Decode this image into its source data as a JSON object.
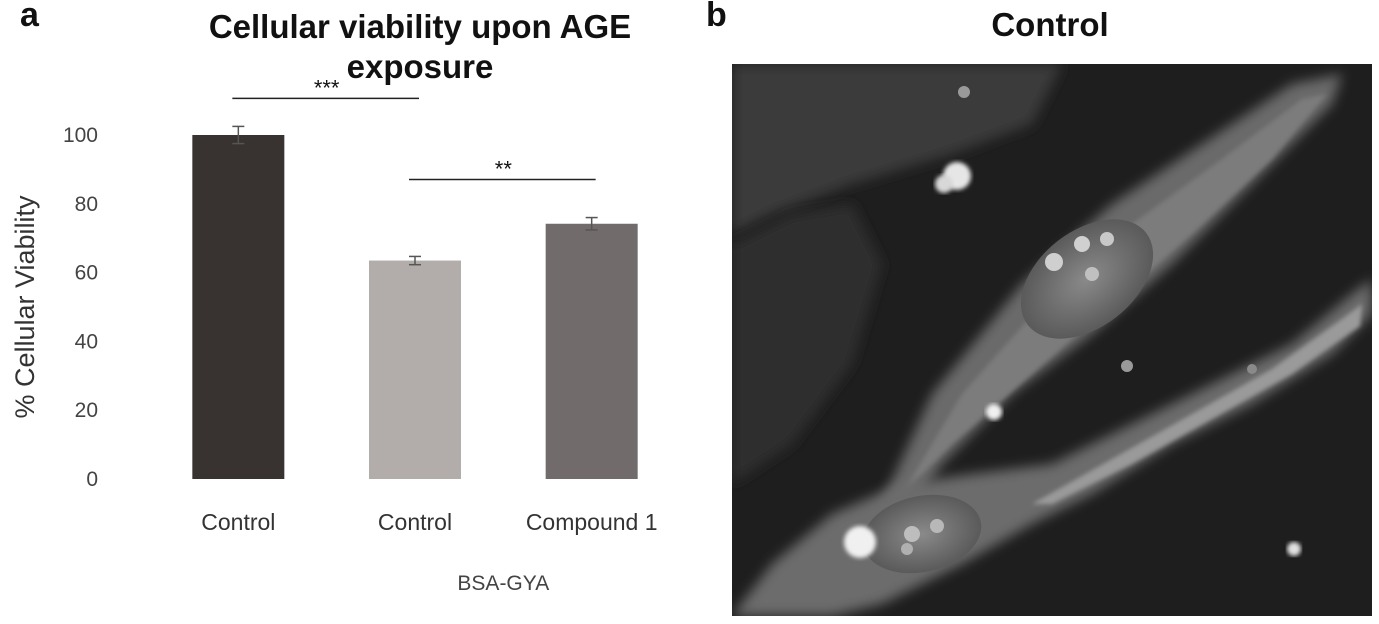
{
  "panels": {
    "a": "a",
    "b": "b"
  },
  "chart_data": {
    "type": "bar",
    "title": "Cellular viability upon AGE exposure",
    "title_lines": [
      "Cellular viability upon AGE",
      "exposure"
    ],
    "ylabel": "% Cellular Viability",
    "xlabel": "",
    "ylim": [
      0,
      100
    ],
    "yticks": [
      0,
      20,
      40,
      60,
      80,
      100
    ],
    "categories": [
      "Control",
      "Control",
      "Compound 1"
    ],
    "values": [
      100,
      63.5,
      74.2
    ],
    "errors": [
      2.5,
      1.2,
      1.8
    ],
    "colors": [
      "#383331",
      "#b2adab",
      "#726b6b"
    ],
    "group_label": "BSA-GYA",
    "group_categories": [
      1,
      2
    ],
    "grid": false,
    "significance": [
      {
        "from": 0,
        "to": 1,
        "label": "***"
      },
      {
        "from": 1,
        "to": 2,
        "label": "**"
      }
    ]
  },
  "micrograph": {
    "title": "Control",
    "background": "#1c1c1c"
  }
}
